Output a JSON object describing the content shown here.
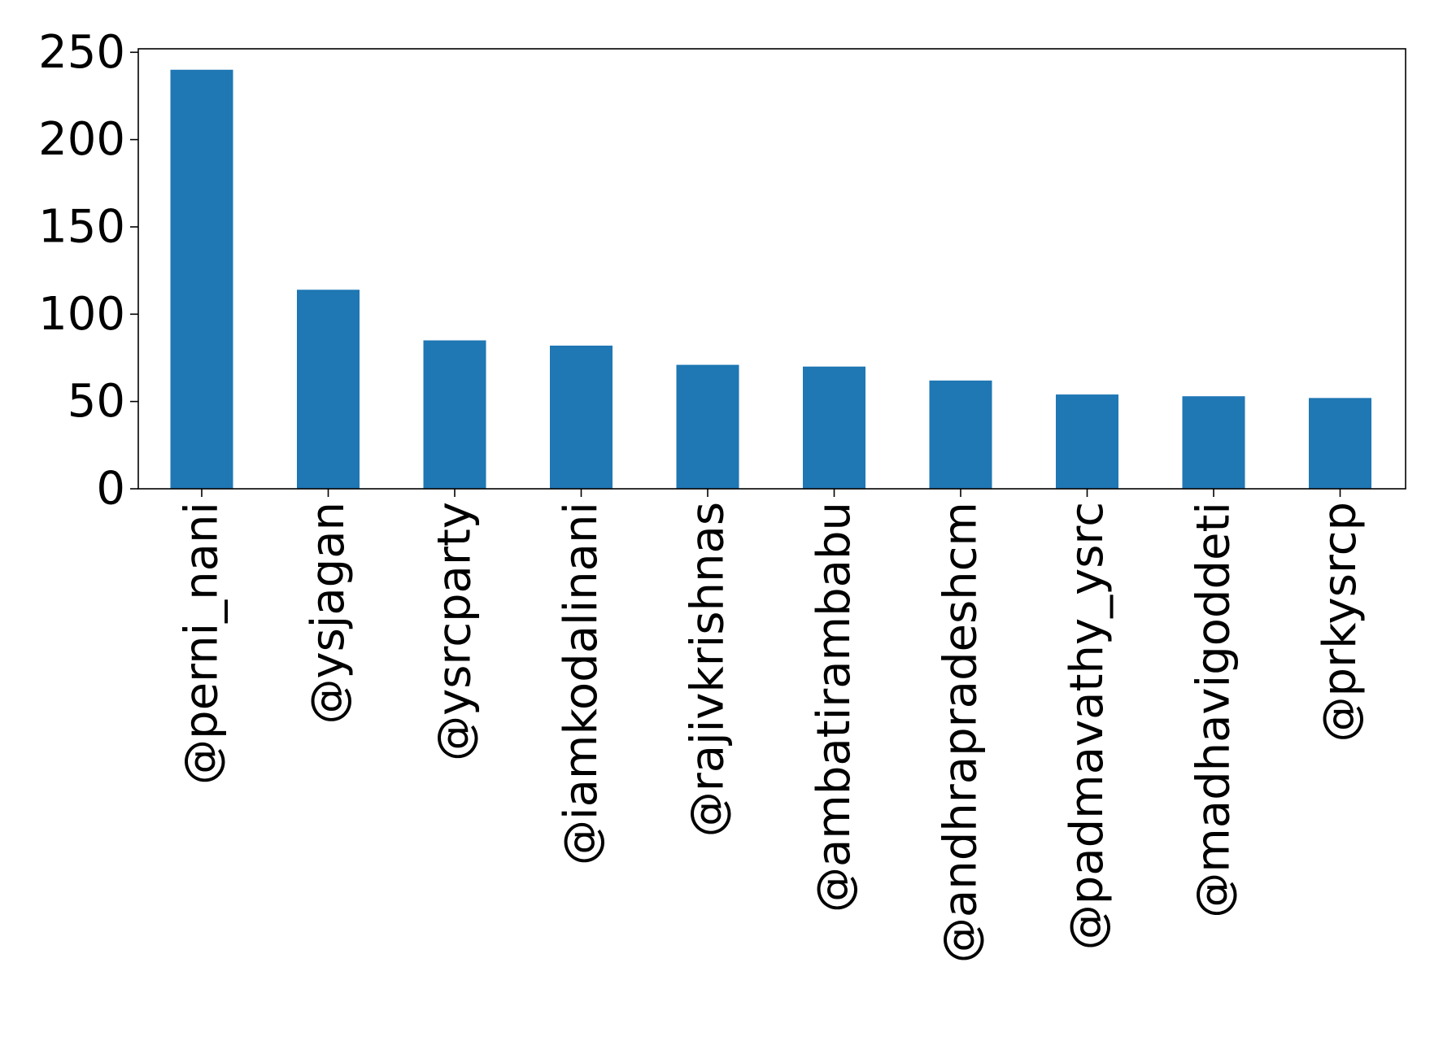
{
  "chart_data": {
    "type": "bar",
    "title": "",
    "xlabel": "",
    "ylabel": "",
    "categories": [
      "@perni_nani",
      "@ysjagan",
      "@ysrcparty",
      "@iamkodalinani",
      "@rajivkrishnas",
      "@ambatirambabu",
      "@andhrapradeshcm",
      "@padmavathy_ysrc",
      "@madhavigoddeti",
      "@prkysrcp"
    ],
    "values": [
      240,
      114,
      85,
      82,
      71,
      70,
      62,
      54,
      53,
      52
    ],
    "ylim": [
      0,
      252
    ],
    "yticks": [
      0,
      50,
      100,
      150,
      200,
      250
    ],
    "bar_color": "#1f77b4",
    "grid": false,
    "legend": "none"
  }
}
